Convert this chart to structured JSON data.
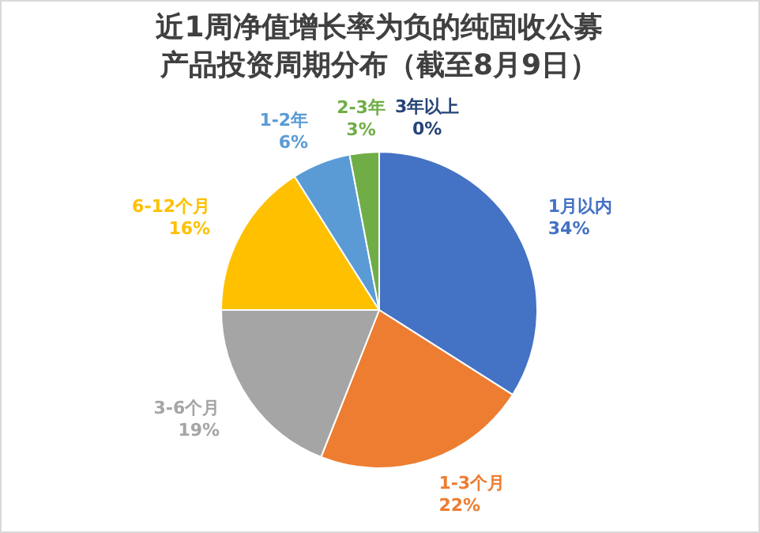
{
  "chart_data": {
    "type": "pie",
    "title": "近1周净值增长率为负的纯固收公募产品投资周期分布（截至8月9日）",
    "categories": [
      "1月以内",
      "1-3个月",
      "3-6个月",
      "6-12个月",
      "1-2年",
      "2-3年",
      "3年以上"
    ],
    "values": [
      34,
      22,
      19,
      16,
      6,
      3,
      0
    ],
    "colors": [
      "#4472c4",
      "#ed7d31",
      "#a5a5a5",
      "#ffc000",
      "#5b9bd5",
      "#70ad47",
      "#264478"
    ],
    "value_labels": [
      "34%",
      "22%",
      "19%",
      "16%",
      "6%",
      "3%",
      "0%"
    ]
  }
}
